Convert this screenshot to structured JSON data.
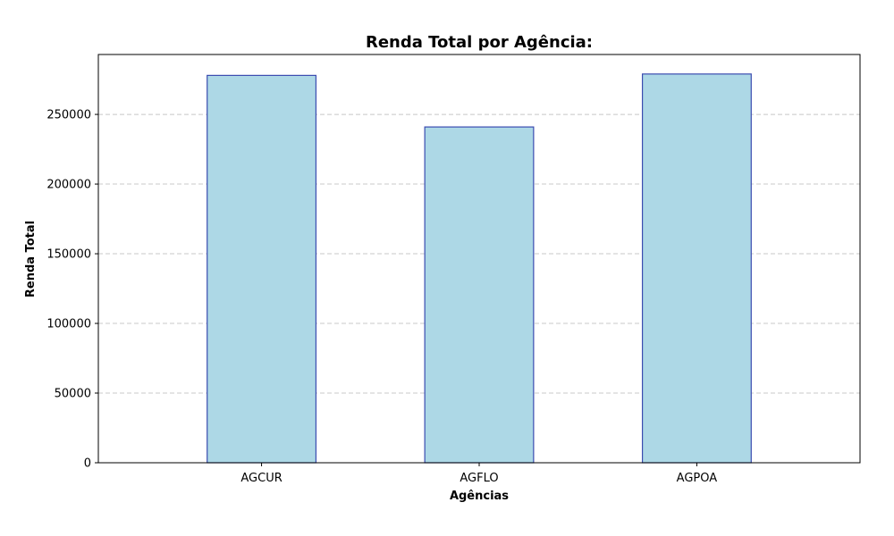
{
  "chart_data": {
    "type": "bar",
    "title": "Renda Total por Agência:",
    "xlabel": "Agências",
    "ylabel": "Renda Total",
    "categories": [
      "AGCUR",
      "AGFLO",
      "AGPOA"
    ],
    "values": [
      278000,
      241000,
      279000
    ],
    "ylim": [
      0,
      293000
    ],
    "yticks": [
      0,
      50000,
      100000,
      150000,
      200000,
      250000
    ],
    "ytick_labels": [
      "0",
      "50000",
      "100000",
      "150000",
      "200000",
      "250000"
    ],
    "grid": "y-dashed",
    "colors": {
      "bar_fill": "#add8e6",
      "bar_edge": "#3b4cb0",
      "grid": "#c8c8c8",
      "axis": "#000000"
    }
  }
}
